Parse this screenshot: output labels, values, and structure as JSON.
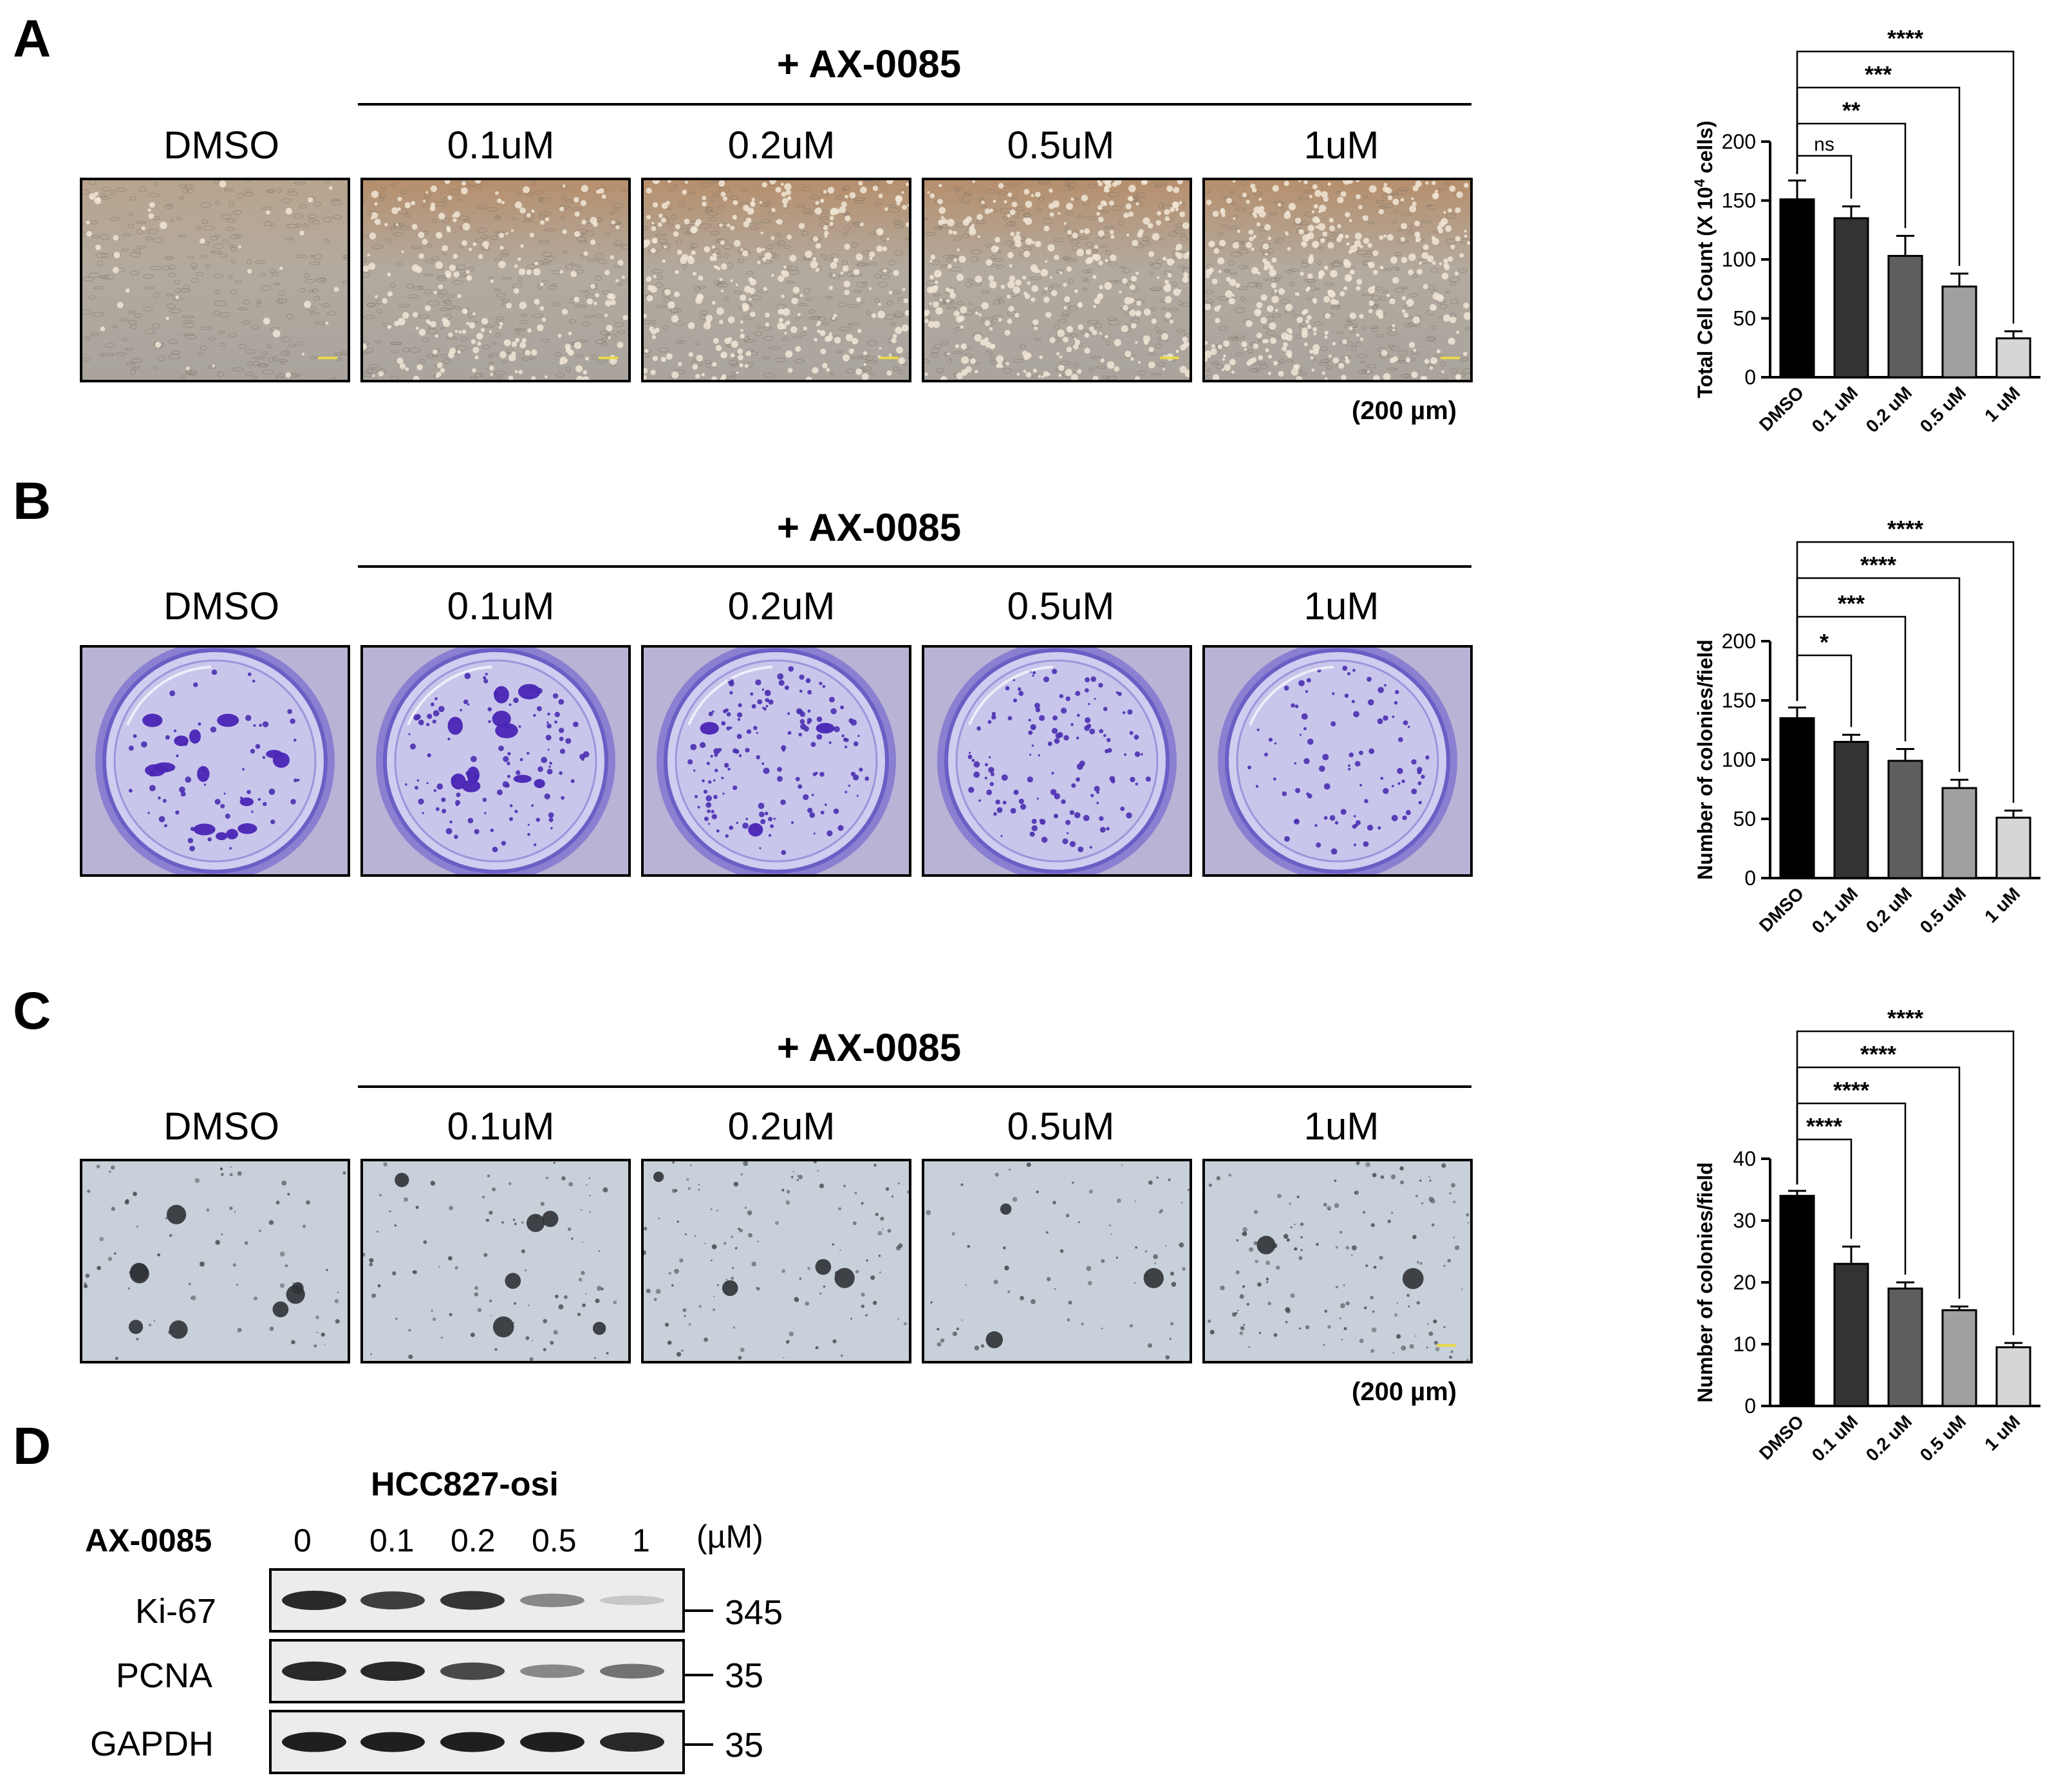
{
  "panels": {
    "A": {
      "letter": "A",
      "treatment": "+ AX-0085",
      "columns": [
        "DMSO",
        "0.1uM",
        "0.2uM",
        "0.5uM",
        "1uM"
      ],
      "scale_note": "(200 µm)",
      "image_style": "brightfield-cells"
    },
    "B": {
      "letter": "B",
      "treatment": "+ AX-0085",
      "columns": [
        "DMSO",
        "0.1uM",
        "0.2uM",
        "0.5uM",
        "1uM"
      ],
      "image_style": "crystal-violet-wells"
    },
    "C": {
      "letter": "C",
      "treatment": "+ AX-0085",
      "columns": [
        "DMSO",
        "0.1uM",
        "0.2uM",
        "0.5uM",
        "1uM"
      ],
      "scale_note": "(200 µm)",
      "image_style": "soft-agar-colonies"
    },
    "D": {
      "letter": "D",
      "cell_line": "HCC827-osi",
      "drug_label": "AX-0085",
      "doses": [
        "0",
        "0.1",
        "0.2",
        "0.5",
        "1"
      ],
      "unit": "(µM)",
      "rows": [
        {
          "protein": "Ki-67",
          "mw": "345",
          "intensity": [
            0.9,
            0.8,
            0.85,
            0.45,
            0.15
          ]
        },
        {
          "protein": "PCNA",
          "mw": "35",
          "intensity": [
            0.9,
            0.9,
            0.75,
            0.45,
            0.55
          ]
        },
        {
          "protein": "GAPDH",
          "mw": "35",
          "intensity": [
            0.95,
            0.95,
            0.95,
            0.95,
            0.9
          ]
        }
      ]
    }
  },
  "chart_data": [
    {
      "type": "bar",
      "ylabel_main": "Total Cell Count (X 10",
      "ylabel_sup": "4",
      "ylabel_end": " cells)",
      "categories": [
        "DMSO",
        "0.1 uM",
        "0.2 uM",
        "0.5 uM",
        "1 uM"
      ],
      "values": [
        151,
        135,
        103,
        77,
        33
      ],
      "errors": [
        16,
        10,
        17,
        11,
        6
      ],
      "ylim": [
        0,
        200
      ],
      "yticks": [
        "0",
        "50",
        "100",
        "150",
        "200"
      ],
      "colors": [
        "#000000",
        "#333333",
        "#5e5e5e",
        "#a0a0a0",
        "#d6d6d6"
      ],
      "significance": [
        "ns",
        "**",
        "***",
        "****"
      ]
    },
    {
      "type": "bar",
      "ylabel": "Number of colonies/field",
      "categories": [
        "DMSO",
        "0.1 uM",
        "0.2 uM",
        "0.5 uM",
        "1 uM"
      ],
      "values": [
        135,
        115,
        99,
        76,
        51
      ],
      "errors": [
        9,
        6,
        10,
        7,
        6
      ],
      "ylim": [
        0,
        200
      ],
      "yticks": [
        "0",
        "50",
        "100",
        "150",
        "200"
      ],
      "colors": [
        "#000000",
        "#333333",
        "#5e5e5e",
        "#a0a0a0",
        "#d6d6d6"
      ],
      "significance": [
        "*",
        "***",
        "****",
        "****"
      ]
    },
    {
      "type": "bar",
      "ylabel": "Number of colonies/field",
      "categories": [
        "DMSO",
        "0.1 uM",
        "0.2 uM",
        "0.5 uM",
        "1 uM"
      ],
      "values": [
        34,
        23,
        19,
        15.5,
        9.5
      ],
      "errors": [
        0.8,
        2.8,
        1.0,
        0.6,
        0.7
      ],
      "ylim": [
        0,
        40
      ],
      "yticks": [
        "0",
        "10",
        "20",
        "30",
        "40"
      ],
      "colors": [
        "#000000",
        "#333333",
        "#5e5e5e",
        "#a0a0a0",
        "#d6d6d6"
      ],
      "significance": [
        "****",
        "****",
        "****",
        "****"
      ]
    }
  ]
}
